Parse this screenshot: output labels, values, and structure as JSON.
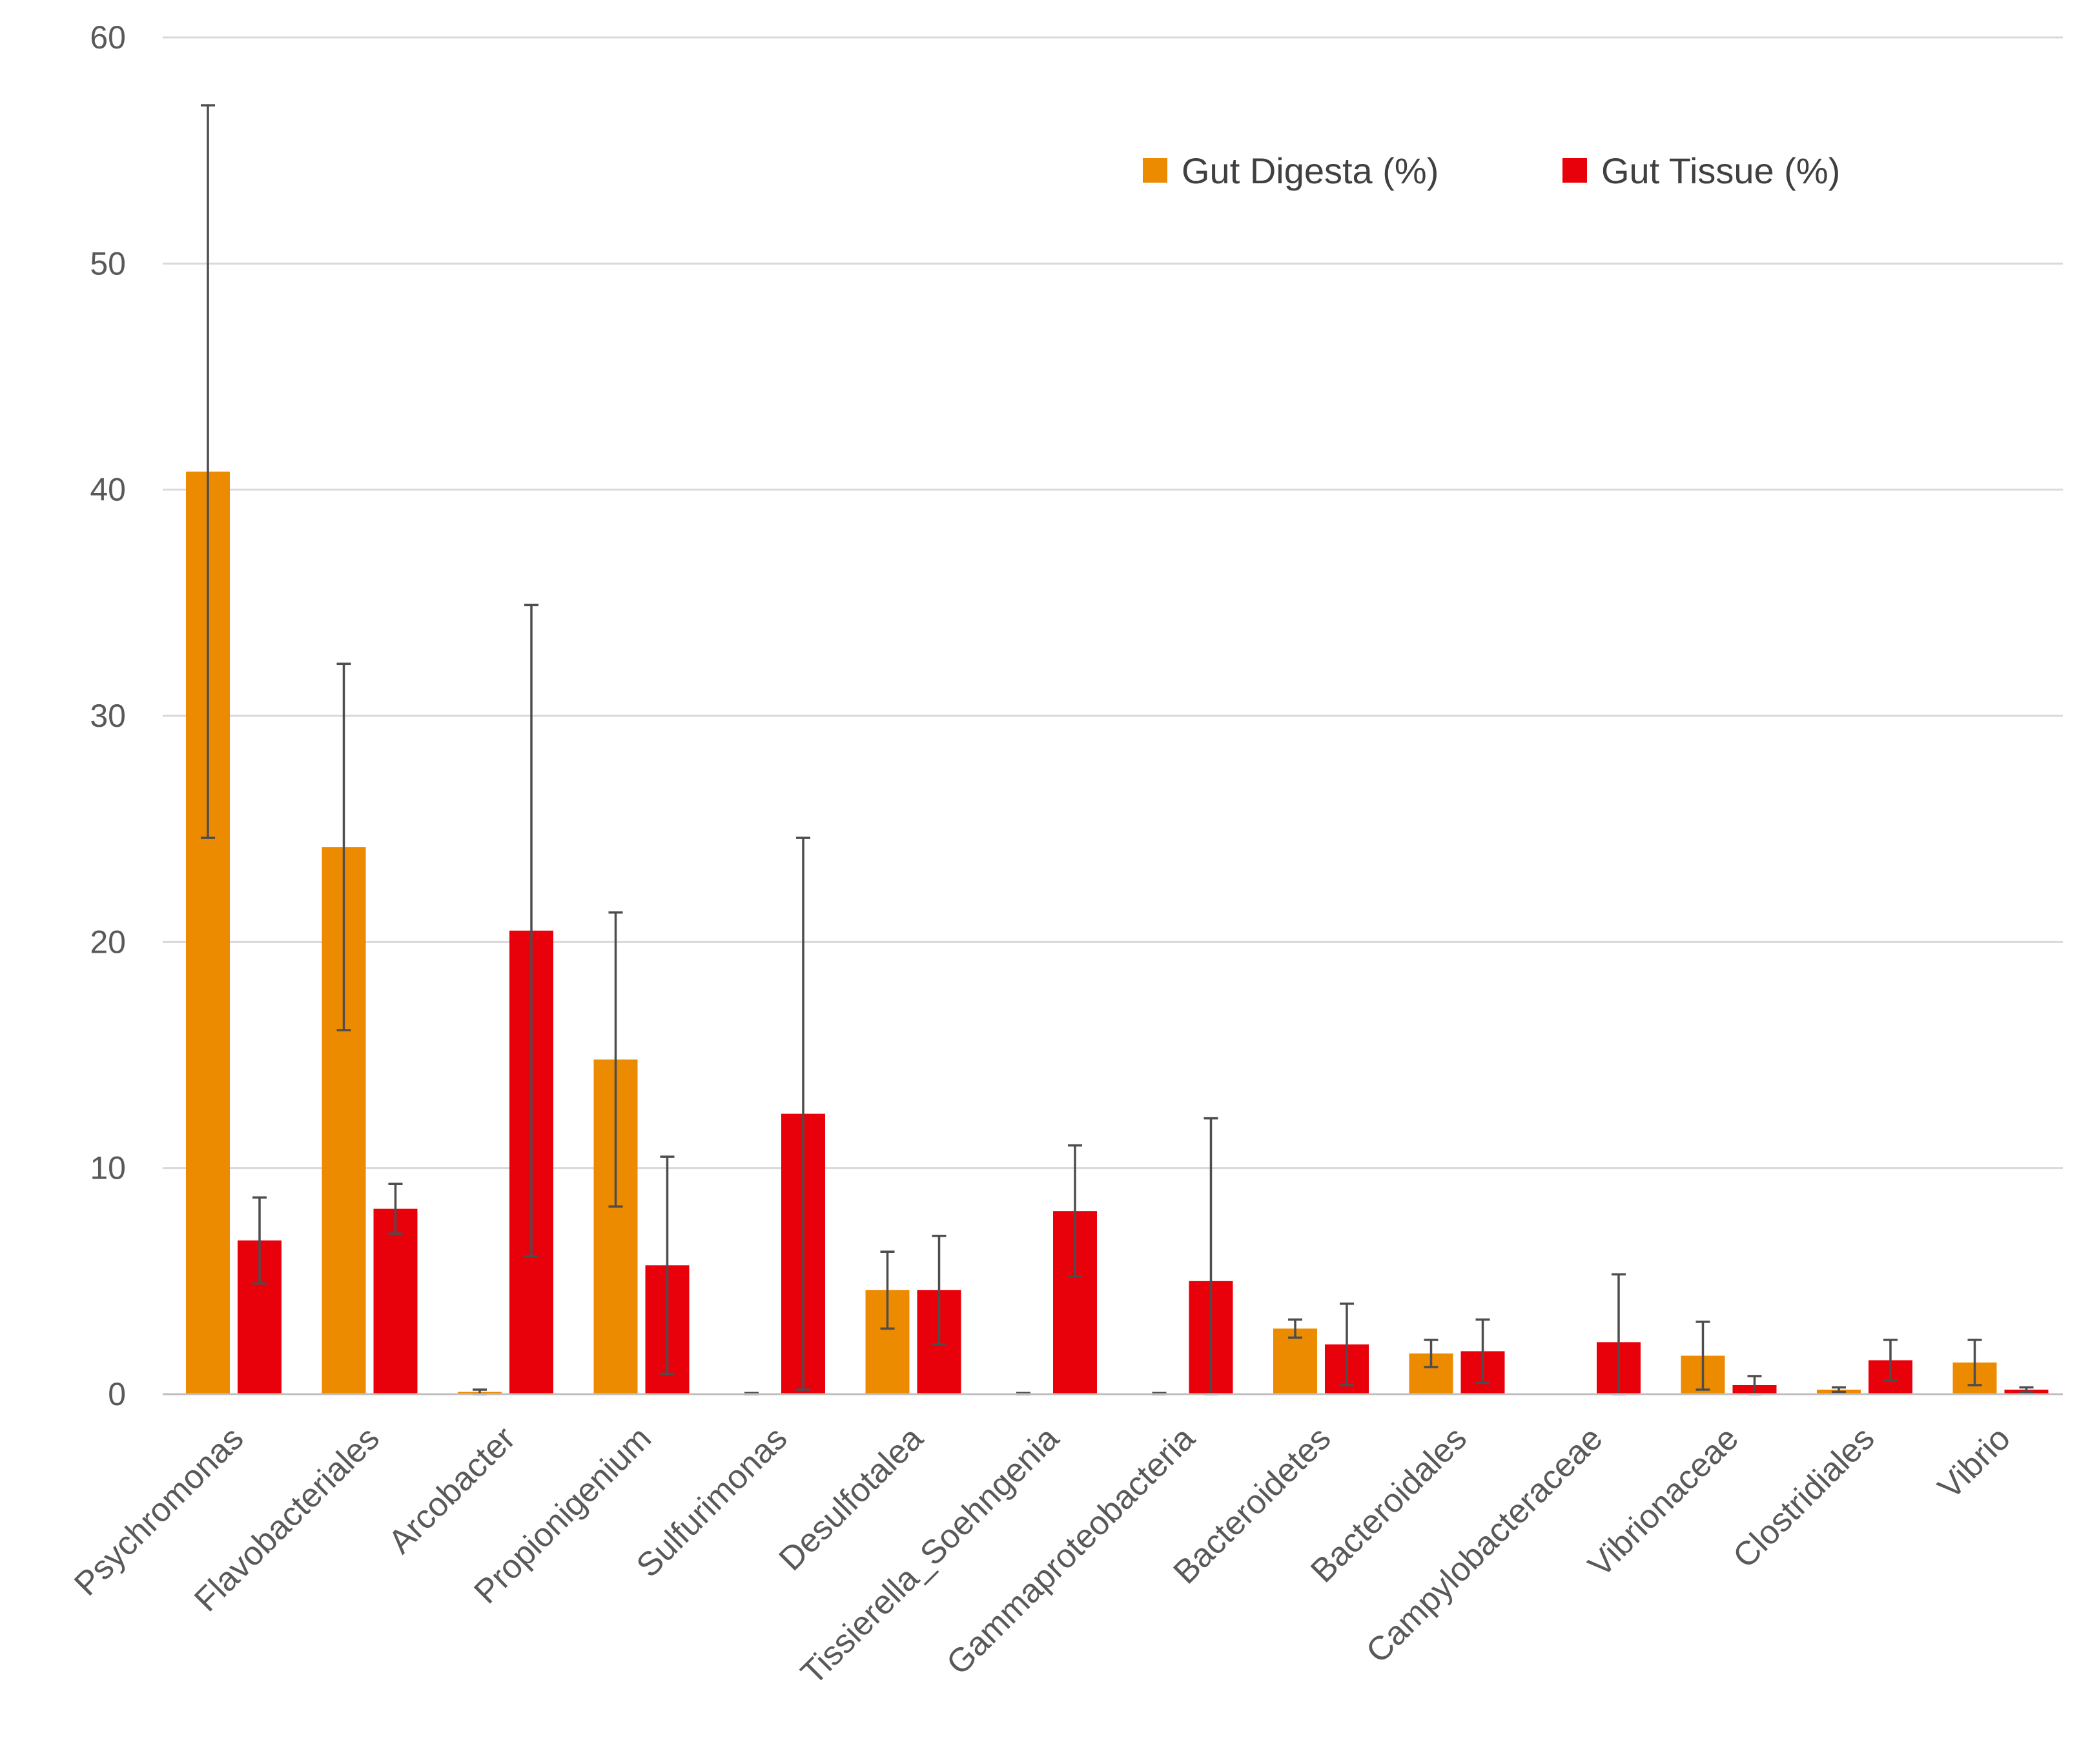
{
  "chart_data": {
    "type": "bar",
    "title": "",
    "xlabel": "",
    "ylabel": "",
    "ylim": [
      0,
      60
    ],
    "yticks": [
      0,
      10,
      20,
      30,
      40,
      50,
      60
    ],
    "grid": true,
    "legend_position": "top-right",
    "categories": [
      "Psychromonas",
      "Flavobacteriales",
      "Arcobacter",
      "Propionigenium",
      "Sulfurimonas",
      "Desulfotalea",
      "Tissierella_Soehngenia",
      "Gammaproteobacteria",
      "Bacteroidetes",
      "Bacteroidales",
      "Campylobacteraceae",
      "Vibrionaceae",
      "Clostridiales",
      "Vibrio"
    ],
    "series": [
      {
        "name": "Gut Digesta (%)",
        "color": "#ED8B00",
        "values": [
          40.8,
          24.2,
          0.1,
          14.8,
          0.0,
          4.6,
          0.0,
          0.0,
          2.9,
          1.8,
          0.0,
          1.7,
          0.2,
          1.4
        ],
        "error": [
          16.2,
          8.1,
          0.1,
          6.5,
          0.05,
          1.7,
          0.05,
          0.05,
          0.4,
          0.6,
          0.0,
          1.5,
          0.1,
          1.0
        ]
      },
      {
        "name": "Gut Tissue (%)",
        "color": "#E8000B",
        "values": [
          6.8,
          8.2,
          20.5,
          5.7,
          12.4,
          4.6,
          8.1,
          5.0,
          2.2,
          1.9,
          2.3,
          0.4,
          1.5,
          0.2
        ],
        "error": [
          1.9,
          1.1,
          14.4,
          4.8,
          12.2,
          2.4,
          2.9,
          7.2,
          1.8,
          1.4,
          3.0,
          0.4,
          0.9,
          0.1
        ]
      }
    ]
  }
}
